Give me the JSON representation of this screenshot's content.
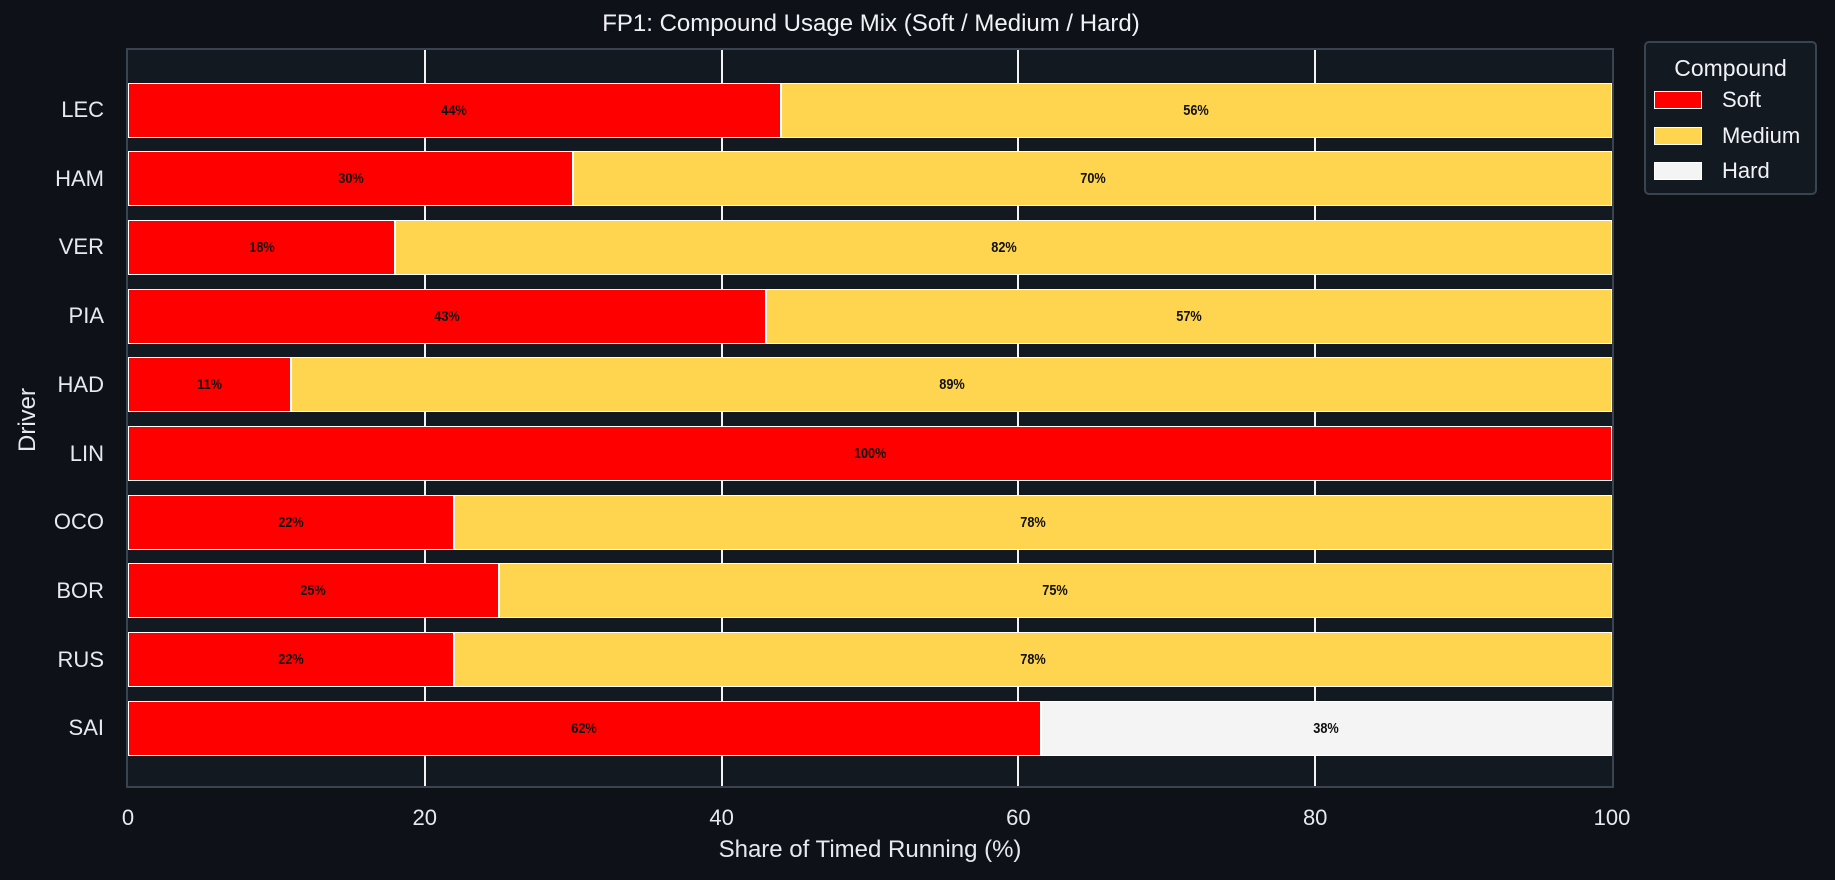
{
  "chart_data": {
    "type": "bar",
    "orientation": "horizontal",
    "stacked": true,
    "title": "FP1: Compound Usage Mix (Soft / Medium / Hard)",
    "xlabel": "Share of Timed Running (%)",
    "ylabel": "Driver",
    "xlim": [
      0,
      100
    ],
    "xticks": [
      "0",
      "20",
      "40",
      "60",
      "80",
      "100"
    ],
    "grid": true,
    "legend_title": "Compound",
    "legend_position": "upper right, outside plot",
    "categories": [
      "LEC",
      "HAM",
      "VER",
      "PIA",
      "HAD",
      "LIN",
      "OCO",
      "BOR",
      "RUS",
      "SAI"
    ],
    "series": [
      {
        "name": "Soft",
        "color": "#ff0000",
        "values": [
          44,
          30,
          18,
          43,
          11,
          100,
          22,
          25,
          22,
          62
        ]
      },
      {
        "name": "Medium",
        "color": "#ffd54f",
        "values": [
          56,
          70,
          82,
          57,
          89,
          0,
          78,
          75,
          78,
          0
        ]
      },
      {
        "name": "Hard",
        "color": "#f4f4f4",
        "values": [
          0,
          0,
          0,
          0,
          0,
          0,
          0,
          0,
          0,
          38
        ]
      }
    ]
  },
  "title": "FP1: Compound Usage Mix (Soft / Medium / Hard)",
  "xlabel": "Share of Timed Running (%)",
  "ylabel": "Driver",
  "xticks": [
    "0",
    "20",
    "40",
    "60",
    "80",
    "100"
  ],
  "legend": {
    "title": "Compound",
    "items": [
      {
        "label": "Soft",
        "color": "#ff0000"
      },
      {
        "label": "Medium",
        "color": "#ffd54f"
      },
      {
        "label": "Hard",
        "color": "#f4f4f4"
      }
    ]
  },
  "rows": [
    {
      "driver": "LEC",
      "segments": [
        {
          "pct": 44,
          "label": "44%",
          "color": "#ff0000"
        },
        {
          "pct": 56,
          "label": "56%",
          "color": "#ffd54f"
        }
      ]
    },
    {
      "driver": "HAM",
      "segments": [
        {
          "pct": 30,
          "label": "30%",
          "color": "#ff0000"
        },
        {
          "pct": 70,
          "label": "70%",
          "color": "#ffd54f"
        }
      ]
    },
    {
      "driver": "VER",
      "segments": [
        {
          "pct": 18,
          "label": "18%",
          "color": "#ff0000"
        },
        {
          "pct": 82,
          "label": "82%",
          "color": "#ffd54f"
        }
      ]
    },
    {
      "driver": "PIA",
      "segments": [
        {
          "pct": 43,
          "label": "43%",
          "color": "#ff0000"
        },
        {
          "pct": 57,
          "label": "57%",
          "color": "#ffd54f"
        }
      ]
    },
    {
      "driver": "HAD",
      "segments": [
        {
          "pct": 11,
          "label": "11%",
          "color": "#ff0000"
        },
        {
          "pct": 89,
          "label": "89%",
          "color": "#ffd54f"
        }
      ]
    },
    {
      "driver": "LIN",
      "segments": [
        {
          "pct": 100,
          "label": "100%",
          "color": "#ff0000"
        }
      ]
    },
    {
      "driver": "OCO",
      "segments": [
        {
          "pct": 22,
          "label": "22%",
          "color": "#ff0000"
        },
        {
          "pct": 78,
          "label": "78%",
          "color": "#ffd54f"
        }
      ]
    },
    {
      "driver": "BOR",
      "segments": [
        {
          "pct": 25,
          "label": "25%",
          "color": "#ff0000"
        },
        {
          "pct": 75,
          "label": "75%",
          "color": "#ffd54f"
        }
      ]
    },
    {
      "driver": "RUS",
      "segments": [
        {
          "pct": 22,
          "label": "22%",
          "color": "#ff0000"
        },
        {
          "pct": 78,
          "label": "78%",
          "color": "#ffd54f"
        }
      ]
    },
    {
      "driver": "SAI",
      "segments": [
        {
          "pct": 61.5,
          "label": "62%",
          "color": "#ff0000"
        },
        {
          "pct": 38.5,
          "label": "38%",
          "color": "#f4f4f4"
        }
      ]
    }
  ]
}
